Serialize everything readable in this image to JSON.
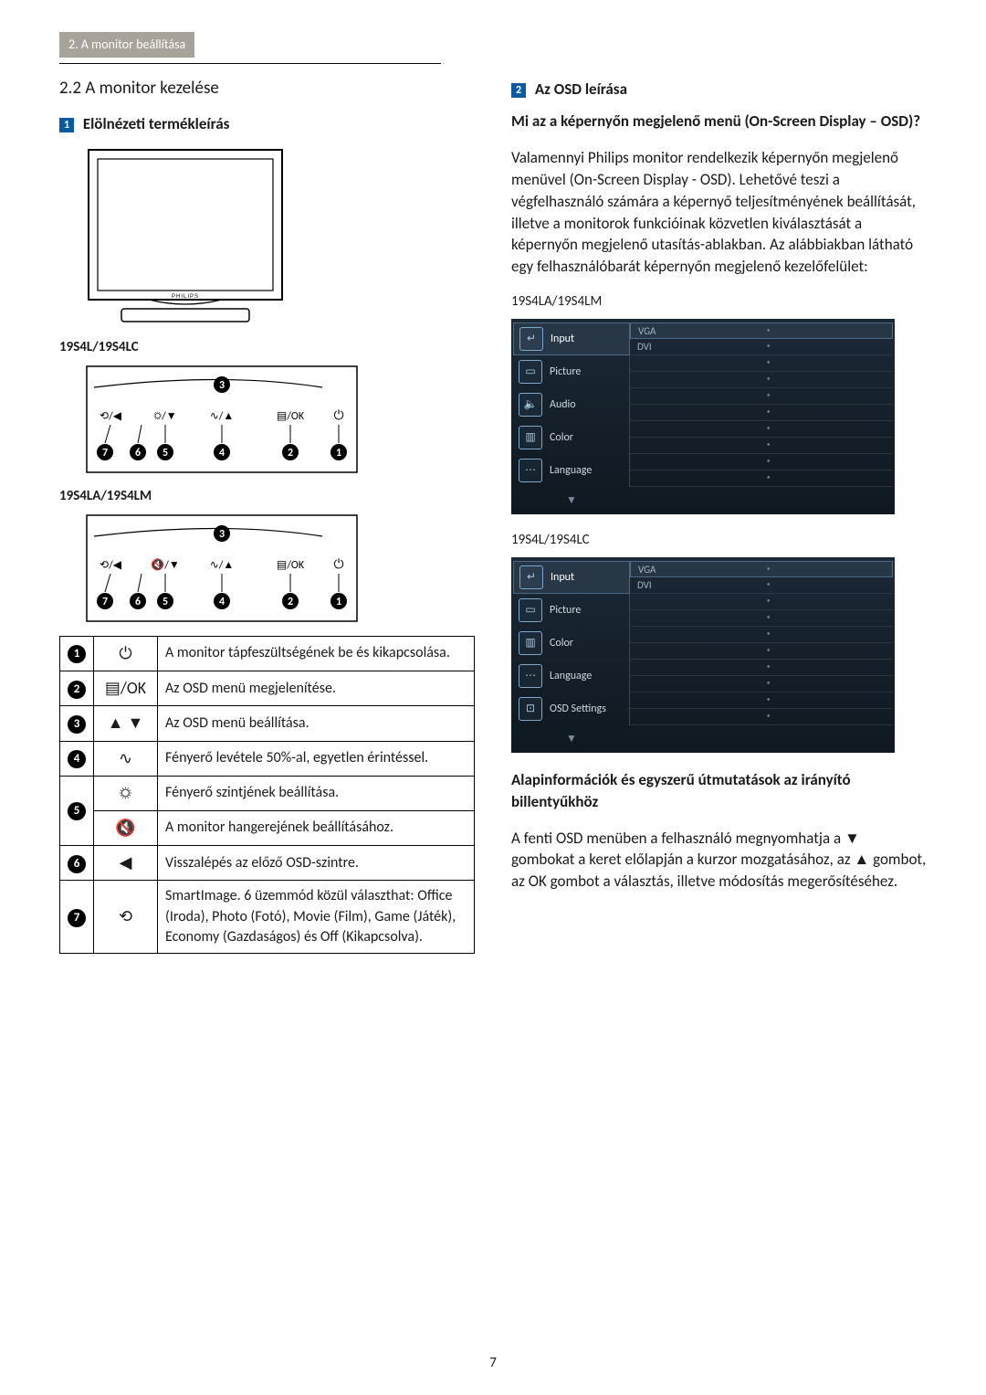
{
  "header": {
    "breadcrumb": "2. A monitor beállítása"
  },
  "section22": {
    "title": "2.2 A monitor kezelése"
  },
  "block1": {
    "num": "1",
    "title": "Elölnézeti termékleírás"
  },
  "monitor": {
    "brand": "PHILIPS"
  },
  "model_a": "19S4L/19S4LC",
  "model_b": "19S4LA/19S4LM",
  "panel": {
    "btn_return": "⟲/◀",
    "btn_bright": "☼/▼",
    "btn_mute": "🔇/▼",
    "btn_smart": "∿/▲",
    "btn_menu": "▤/OK",
    "btn_power": "⏻",
    "nums": [
      "7",
      "6",
      "5",
      "4",
      "2",
      "1"
    ],
    "top_num": "3"
  },
  "tbl": {
    "rows": [
      {
        "n": "1",
        "icon": "⏻",
        "desc": "A monitor tápfeszültségének be és kikapcsolása."
      },
      {
        "n": "2",
        "icon": "▤/OK",
        "desc": "Az OSD menü megjelenítése."
      },
      {
        "n": "3",
        "icon": "▲ ▼",
        "desc": "Az OSD menü beállítása."
      },
      {
        "n": "4",
        "icon": "∿",
        "desc": "Fényerő levétele 50%-al, egyetlen érintéssel."
      },
      {
        "n": "5",
        "icon_a": "☼",
        "desc_a": "Fényerő szintjének beállítása.",
        "icon_b": "🔇",
        "desc_b": "A monitor hangerejének beállításához."
      },
      {
        "n": "6",
        "icon": "◀",
        "desc": "Visszalépés az előző OSD-szintre."
      },
      {
        "n": "7",
        "icon": "⟲",
        "desc": "SmartImage. 6 üzemmód közül választhat: Office (Iroda), Photo (Fotó), Movie (Film), Game (Játék), Economy (Gazdaságos) és Off (Kikapcsolva)."
      }
    ]
  },
  "block2": {
    "num": "2",
    "title": "Az OSD leírása"
  },
  "right": {
    "q_title": "Mi az a képernyőn megjelenő menü (On-Screen Display – OSD)?",
    "para": "Valamennyi Philips monitor rendelkezik képernyőn megjelenő menüvel (On-Screen Display - OSD). Lehetővé teszi a végfelhasználó számára a képernyő teljesítményének beállítását, illetve a monitorok funkcióinak közvetlen kiválasztását a képernyőn megjelenő utasítás-ablakban. Az alábbiakban látható egy felhasználóbarát képernyőn megjelenő kezelőfelület:",
    "model_la": "19S4LA/19S4LM",
    "model_l": "19S4L/19S4LC",
    "guide_title": "Alapinformációk és egyszerű útmutatások az irányító billentyűkhöz",
    "guide_para_a": "A fenti OSD menüben a felhasználó megnyomhatja a ",
    "guide_para_b": " gombokat a keret előlapján a kurzor mozgatásához, az ",
    "guide_para_c": " gombot, az OK gombot a választás, illetve módosítás megerősítéséhez."
  },
  "osd_a": {
    "rows": [
      {
        "icon": "↵",
        "label": "Input",
        "active": true,
        "sub": [
          "VGA",
          "DVI"
        ]
      },
      {
        "icon": "▭",
        "label": "Picture",
        "sub": [
          "",
          ""
        ]
      },
      {
        "icon": "🔈",
        "label": "Audio",
        "sub": [
          "",
          ""
        ]
      },
      {
        "icon": "▥",
        "label": "Color",
        "sub": [
          "",
          ""
        ]
      },
      {
        "icon": "⋯",
        "label": "Language",
        "sub": [
          "",
          ""
        ]
      }
    ]
  },
  "osd_b": {
    "rows": [
      {
        "icon": "↵",
        "label": "Input",
        "active": true,
        "sub": [
          "VGA",
          "DVI"
        ]
      },
      {
        "icon": "▭",
        "label": "Picture",
        "sub": [
          "",
          ""
        ]
      },
      {
        "icon": "▥",
        "label": "Color",
        "sub": [
          "",
          ""
        ]
      },
      {
        "icon": "⋯",
        "label": "Language",
        "sub": [
          "",
          ""
        ]
      },
      {
        "icon": "⊡",
        "label": "OSD Settings",
        "sub": [
          "",
          ""
        ]
      }
    ]
  },
  "page_number": "7"
}
